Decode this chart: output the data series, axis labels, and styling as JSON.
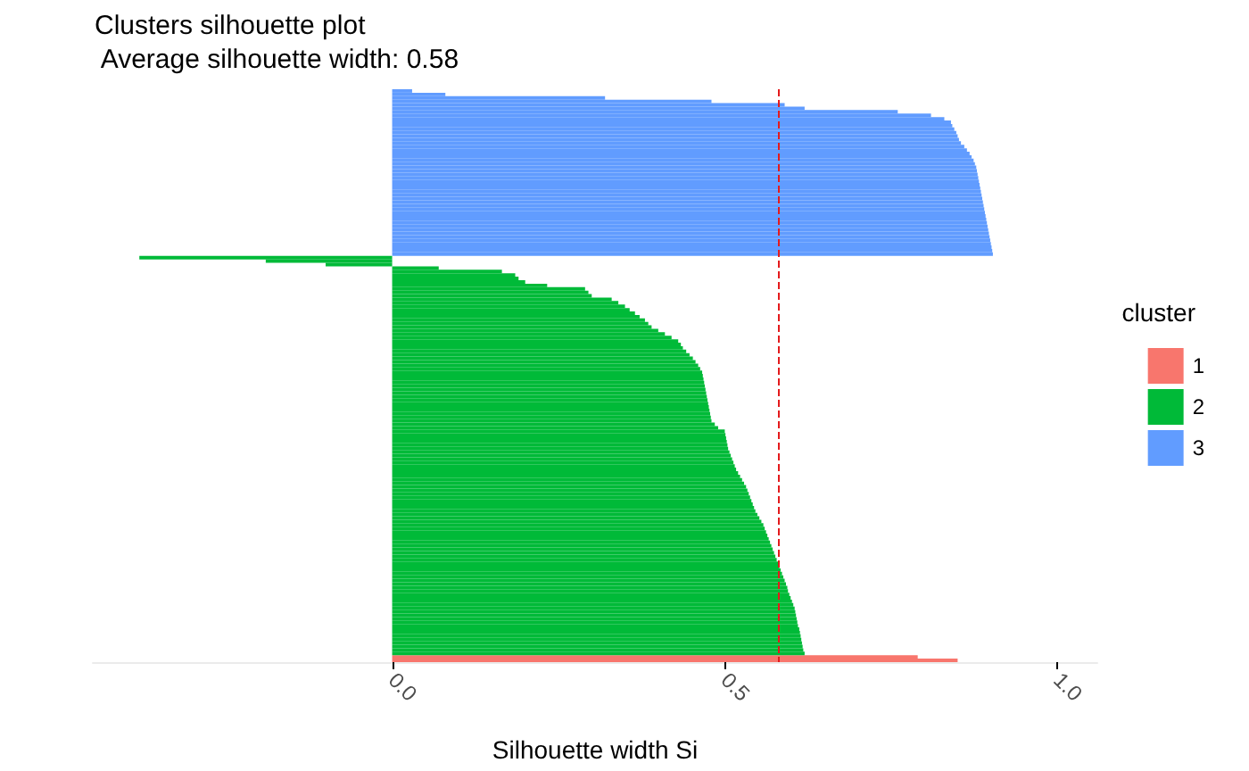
{
  "chart_data": {
    "type": "bar",
    "orientation": "horizontal",
    "title": "Clusters silhouette plot",
    "subtitle": " Average silhouette width: 0.58",
    "xlabel": "Silhouette width Si",
    "legend_title": "cluster",
    "legend": "right",
    "grid": false,
    "xlim": [
      -0.45,
      1.06
    ],
    "xticks": [
      {
        "value": 0,
        "label": "0.0"
      },
      {
        "value": 0.5,
        "label": "0.5"
      },
      {
        "value": 1,
        "label": "1.0"
      }
    ],
    "ref_lines": [
      {
        "axis": "x",
        "value": 0.58,
        "color": "#e41a1c",
        "line_style": "dashed"
      }
    ],
    "categories": [
      null,
      null,
      null,
      null,
      null,
      null,
      null,
      null,
      null,
      null,
      null,
      null,
      null,
      null,
      null,
      null,
      null,
      null,
      null,
      null,
      null,
      null,
      null,
      null,
      null,
      null,
      null,
      null,
      null,
      null,
      null,
      null,
      null,
      null,
      null,
      null,
      null,
      null,
      null,
      null,
      null,
      null,
      null,
      null,
      null,
      null,
      null,
      null,
      null,
      null,
      null,
      null,
      null,
      null,
      null,
      null,
      null,
      null,
      null,
      null,
      null,
      null,
      null,
      null,
      null,
      null,
      null,
      null,
      null,
      null,
      null,
      null,
      null,
      null,
      null,
      null,
      null,
      null,
      null,
      null,
      null,
      null,
      null,
      null,
      null,
      null,
      null,
      null,
      null,
      null,
      null,
      null,
      null,
      null,
      null,
      null,
      null,
      null,
      null,
      null,
      null,
      null,
      null,
      null,
      null,
      null,
      null,
      null,
      null,
      null,
      null,
      null,
      null,
      null,
      null,
      null,
      null,
      null,
      null,
      null,
      null,
      null,
      null,
      null,
      null,
      null,
      null,
      null,
      null,
      null,
      null,
      null,
      null,
      null,
      null,
      null,
      null,
      null,
      null,
      null,
      null,
      null,
      null,
      null,
      null,
      null,
      null,
      null,
      null,
      null,
      null,
      null,
      null,
      null,
      null,
      null,
      null,
      null,
      null,
      null,
      null,
      null,
      null,
      null,
      null
    ],
    "series": [
      {
        "name": "1",
        "color": "#f8766d",
        "values": [
          null,
          null,
          null,
          null,
          null,
          null,
          null,
          null,
          null,
          null,
          null,
          null,
          null,
          null,
          null,
          null,
          null,
          null,
          null,
          null,
          null,
          null,
          null,
          null,
          null,
          null,
          null,
          null,
          null,
          null,
          null,
          null,
          null,
          null,
          null,
          null,
          null,
          null,
          null,
          null,
          null,
          null,
          null,
          null,
          null,
          null,
          null,
          null,
          null,
          null,
          null,
          null,
          null,
          null,
          null,
          null,
          null,
          null,
          null,
          null,
          null,
          null,
          null,
          null,
          null,
          null,
          null,
          null,
          null,
          null,
          null,
          null,
          null,
          null,
          null,
          null,
          null,
          null,
          null,
          null,
          null,
          null,
          null,
          null,
          null,
          null,
          null,
          null,
          null,
          null,
          null,
          null,
          null,
          null,
          null,
          null,
          null,
          null,
          null,
          null,
          null,
          null,
          null,
          null,
          null,
          null,
          null,
          null,
          null,
          null,
          null,
          null,
          null,
          null,
          null,
          null,
          null,
          null,
          null,
          null,
          null,
          null,
          null,
          null,
          null,
          null,
          null,
          null,
          null,
          null,
          null,
          null,
          null,
          null,
          null,
          null,
          null,
          null,
          null,
          null,
          null,
          null,
          null,
          null,
          null,
          null,
          null,
          null,
          null,
          null,
          null,
          null,
          null,
          null,
          null,
          null,
          null,
          null,
          null,
          null,
          null,
          null,
          null,
          0.79,
          0.85
        ]
      },
      {
        "name": "2",
        "color": "#00ba38",
        "values": [
          null,
          null,
          null,
          null,
          null,
          null,
          null,
          null,
          null,
          null,
          null,
          null,
          null,
          null,
          null,
          null,
          null,
          null,
          null,
          null,
          null,
          null,
          null,
          null,
          null,
          null,
          null,
          null,
          null,
          null,
          null,
          null,
          null,
          null,
          null,
          null,
          null,
          null,
          null,
          null,
          null,
          null,
          null,
          null,
          null,
          null,
          null,
          null,
          -0.38,
          -0.19,
          -0.1,
          0.07,
          0.165,
          0.185,
          0.19,
          0.2,
          0.233,
          0.29,
          0.295,
          0.3,
          0.33,
          0.34,
          0.35,
          0.357,
          0.365,
          0.372,
          0.38,
          0.385,
          0.39,
          0.4,
          0.41,
          0.42,
          0.43,
          0.434,
          0.437,
          0.442,
          0.447,
          0.452,
          0.456,
          0.46,
          0.463,
          0.466,
          0.467,
          0.468,
          0.469,
          0.47,
          0.471,
          0.472,
          0.473,
          0.474,
          0.475,
          0.476,
          0.477,
          0.478,
          0.479,
          0.48,
          0.485,
          0.49,
          0.5,
          0.501,
          0.502,
          0.503,
          0.504,
          0.505,
          0.507,
          0.509,
          0.511,
          0.513,
          0.515,
          0.517,
          0.52,
          0.523,
          0.526,
          0.529,
          0.532,
          0.534,
          0.536,
          0.538,
          0.54,
          0.542,
          0.544,
          0.546,
          0.549,
          0.552,
          0.555,
          0.558,
          0.56,
          0.562,
          0.564,
          0.566,
          0.568,
          0.57,
          0.572,
          0.574,
          0.576,
          0.578,
          0.58,
          0.582,
          0.584,
          0.586,
          0.588,
          0.59,
          0.592,
          0.594,
          0.595,
          0.597,
          0.599,
          0.601,
          0.603,
          0.605,
          0.606,
          0.607,
          0.608,
          0.609,
          0.61,
          0.612,
          0.613,
          0.614,
          0.615,
          0.616,
          0.617,
          0.618,
          0.62,
          null,
          null
        ]
      },
      {
        "name": "3",
        "color": "#619cff",
        "values": [
          0.03,
          0.08,
          0.32,
          0.48,
          0.59,
          0.62,
          0.76,
          0.81,
          0.83,
          0.84,
          0.842,
          0.845,
          0.848,
          0.85,
          0.852,
          0.855,
          0.86,
          0.864,
          0.868,
          0.871,
          0.874,
          0.876,
          0.878,
          0.879,
          0.88,
          0.881,
          0.882,
          0.883,
          0.884,
          0.885,
          0.886,
          0.887,
          0.888,
          0.889,
          0.89,
          0.891,
          0.892,
          0.893,
          0.894,
          0.895,
          0.896,
          0.897,
          0.898,
          0.899,
          0.9,
          0.901,
          0.902,
          0.903,
          null,
          null,
          null,
          null,
          null,
          null,
          null,
          null,
          null,
          null,
          null,
          null,
          null,
          null,
          null,
          null,
          null,
          null,
          null,
          null,
          null,
          null,
          null,
          null,
          null,
          null,
          null,
          null,
          null,
          null,
          null,
          null,
          null,
          null,
          null,
          null,
          null,
          null,
          null,
          null,
          null,
          null,
          null,
          null,
          null,
          null,
          null,
          null,
          null,
          null,
          null,
          null,
          null,
          null,
          null,
          null,
          null,
          null,
          null,
          null,
          null,
          null,
          null,
          null,
          null,
          null,
          null,
          null,
          null,
          null,
          null,
          null,
          null,
          null,
          null,
          null,
          null,
          null,
          null,
          null,
          null,
          null,
          null,
          null,
          null,
          null,
          null,
          null,
          null,
          null,
          null,
          null,
          null,
          null,
          null,
          null,
          null,
          null,
          null,
          null,
          null,
          null,
          null,
          null,
          null,
          null,
          null,
          null,
          null,
          null,
          null,
          null,
          null,
          null,
          null,
          null,
          null
        ]
      }
    ]
  }
}
